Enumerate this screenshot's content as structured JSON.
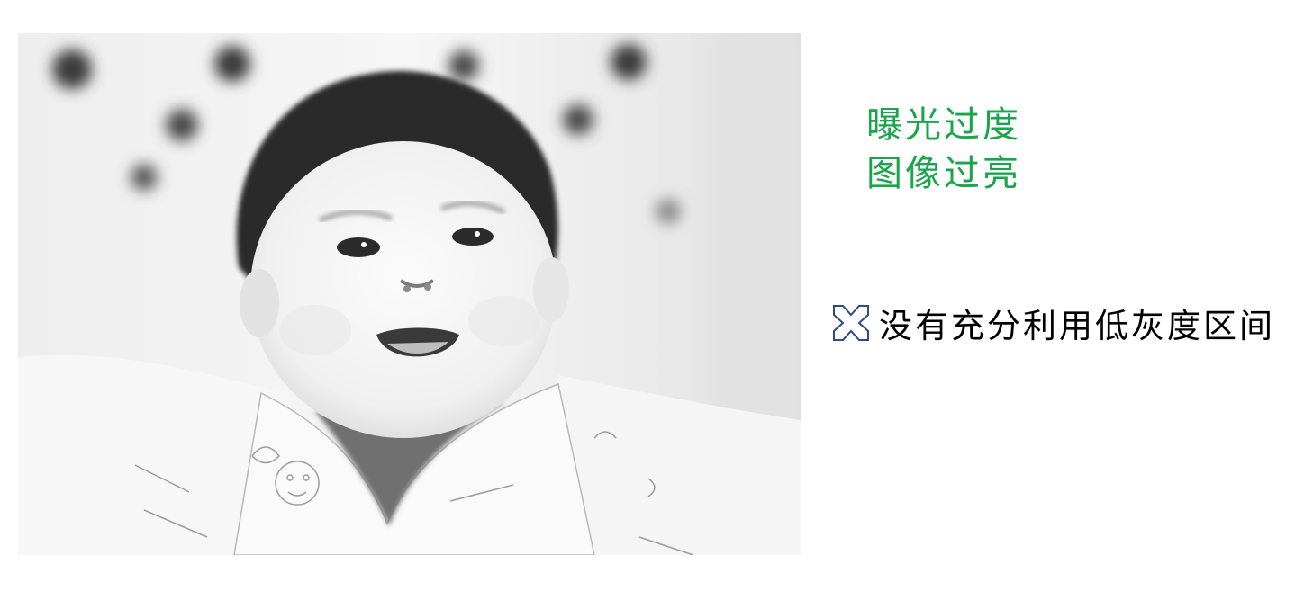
{
  "annotation": {
    "lines": [
      "曝光过度",
      "图像过亮"
    ],
    "color": "#1aa54b"
  },
  "note": {
    "icon": "cross-mark-icon",
    "icon_color": "#2f4a8a",
    "text": "没有充分利用低灰度区间"
  },
  "photo": {
    "subject": "overexposed grayscale baby photo"
  }
}
